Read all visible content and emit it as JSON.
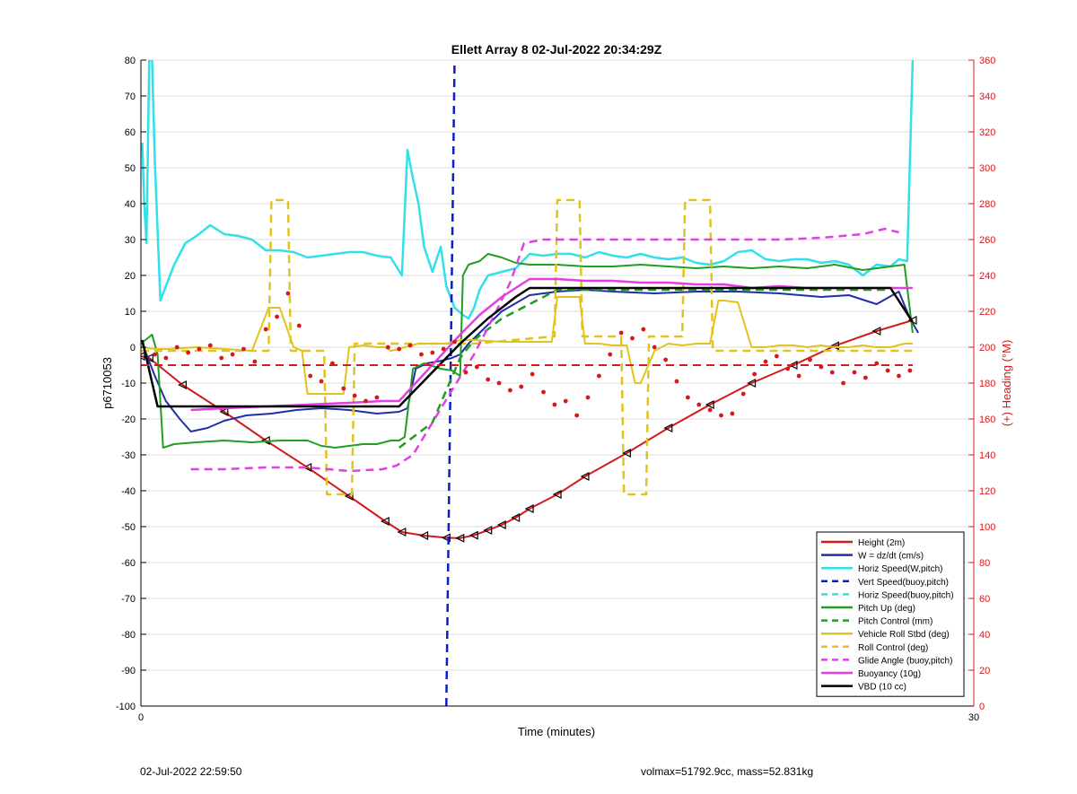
{
  "chart_data": {
    "type": "line",
    "title": "Ellett Array 8 02-Jul-2022 20:34:29Z",
    "xlabel": "Time (minutes)",
    "ylabel_left": "p6710053",
    "ylabel_right": "(+) Heading (°M)",
    "xlim": [
      0,
      30
    ],
    "ylim_left": [
      -100,
      80
    ],
    "ylim_right": [
      0,
      360
    ],
    "x_ticks": [
      "0",
      "30"
    ],
    "y_ticks_left": [
      "80",
      "70",
      "60",
      "50",
      "40",
      "30",
      "20",
      "10",
      "0",
      "-10",
      "-20",
      "-30",
      "-40",
      "-50",
      "-60",
      "-70",
      "-80",
      "-90",
      "-100"
    ],
    "y_ticks_right": [
      "360",
      "340",
      "320",
      "300",
      "280",
      "260",
      "240",
      "220",
      "200",
      "180",
      "160",
      "140",
      "120",
      "100",
      "80",
      "60",
      "40",
      "20",
      "0"
    ],
    "grid": true,
    "legend_position": "bottom-right",
    "colors": {
      "red": "#d7191c",
      "blue": "#1f2fa8",
      "dark_blue": "#0b1fc4",
      "cyan": "#32e0ea",
      "green": "#1f9e1f",
      "yellow": "#e2c31e",
      "magenta": "#e23fe2",
      "black": "#000000",
      "right_axis": "#d7191c",
      "grid": "#dcdcdc"
    },
    "series": [
      {
        "name": "Height (2m)",
        "color": "red",
        "dash": false,
        "width": 2,
        "markers": "triangle",
        "x": [
          0.0,
          0.3,
          1.5,
          3.0,
          4.5,
          6.0,
          7.5,
          8.8,
          9.4,
          10.2,
          11.0,
          11.5,
          12.0,
          12.5,
          13.0,
          13.5,
          14.0,
          15.0,
          16.0,
          17.5,
          19.0,
          20.5,
          22.0,
          23.5,
          25.0,
          26.5,
          27.8
        ],
        "y": [
          -2.5,
          -3,
          -10.5,
          -18,
          -26,
          -33.5,
          -41.5,
          -48.5,
          -51.5,
          -52.5,
          -53.1,
          -53.2,
          -52.4,
          -51,
          -49.5,
          -47.5,
          -45,
          -41,
          -36,
          -29.5,
          -22.5,
          -16,
          -10,
          -5,
          0.4,
          4.5,
          7.5
        ]
      },
      {
        "name": "W = dz/dt (cm/s)",
        "color": "blue",
        "dash": false,
        "width": 2,
        "x": [
          0.0,
          0.2,
          0.5,
          0.9,
          1.4,
          1.8,
          2.4,
          3.0,
          3.8,
          4.7,
          5.6,
          6.5,
          7.5,
          8.5,
          9.3,
          9.6,
          9.9,
          10.3,
          10.8,
          11.2,
          11.5,
          11.8,
          12.2,
          13.0,
          14.0,
          15.0,
          16.0,
          17.0,
          18.5,
          20.0,
          21.5,
          23.0,
          24.5,
          25.5,
          26.5,
          27.3,
          27.7,
          28.0
        ],
        "y": [
          2,
          -2,
          -8,
          -15,
          -20,
          -23.5,
          -22.5,
          -20.5,
          -19,
          -18.5,
          -17.5,
          -17,
          -17.5,
          -18.5,
          -18,
          -17,
          -6,
          -4.5,
          -3.8,
          -3,
          -2,
          1,
          4,
          10,
          14.5,
          15.5,
          16,
          15.5,
          15,
          15.5,
          15.5,
          15,
          14,
          14.5,
          12,
          15.5,
          8,
          4
        ]
      },
      {
        "name": "Horiz Speed(W,pitch)",
        "color": "cyan",
        "dash": false,
        "width": 2.5,
        "x": [
          0.05,
          0.12,
          0.2,
          0.3,
          0.4,
          0.5,
          0.7,
          0.9,
          1.2,
          1.6,
          2.0,
          2.5,
          3.0,
          3.5,
          4.0,
          4.5,
          5.0,
          5.5,
          6.0,
          6.5,
          7.0,
          7.5,
          8.0,
          8.5,
          9.0,
          9.4,
          9.6,
          9.8,
          10.0,
          10.2,
          10.5,
          10.8,
          11.0,
          11.3,
          11.6,
          11.8,
          12.0,
          12.2,
          12.5,
          13.0,
          13.5,
          14.0,
          14.5,
          15.0,
          15.5,
          16.0,
          16.5,
          17.0,
          17.5,
          18.0,
          18.5,
          19.0,
          19.5,
          20.0,
          20.5,
          21.0,
          21.5,
          22.0,
          22.5,
          23.0,
          23.5,
          24.0,
          24.5,
          25.0,
          25.5,
          26.0,
          26.5,
          27.0,
          27.3,
          27.6,
          27.8
        ],
        "y": [
          57,
          40,
          29,
          80,
          80,
          52,
          13,
          17,
          23,
          29,
          31,
          34,
          31.5,
          31,
          30,
          27,
          27,
          26.5,
          25,
          25.5,
          26,
          26.5,
          26.5,
          25.5,
          25,
          20,
          55,
          47,
          40,
          28,
          21,
          28,
          17,
          11,
          9,
          8,
          11,
          16,
          20,
          21,
          22,
          26,
          25.5,
          26,
          26,
          25,
          26.5,
          25.5,
          25,
          26,
          25,
          24.5,
          25,
          23.5,
          23,
          24,
          26.5,
          27,
          24.5,
          24,
          24.5,
          24.5,
          23.5,
          24,
          23,
          20,
          23,
          22.5,
          24.5,
          24,
          80
        ]
      },
      {
        "name": "Vert Speed(buoy,pitch)",
        "color": "dark_blue",
        "dash": true,
        "width": 2.5,
        "x": [
          11.0,
          11.3
        ],
        "y": [
          -100,
          80
        ]
      },
      {
        "name": "Horiz Speed(buoy,pitch)",
        "color": "cyan",
        "dash": true,
        "width": 2.5,
        "x": [],
        "y": []
      },
      {
        "name": "Pitch Up (deg)",
        "color": "green",
        "dash": false,
        "width": 2,
        "x": [
          0.0,
          0.4,
          0.6,
          0.8,
          1.2,
          2.0,
          3.0,
          4.0,
          5.0,
          6.0,
          6.5,
          7.0,
          7.5,
          8.0,
          8.5,
          9.0,
          9.3,
          9.5,
          9.8,
          10.2,
          10.8,
          11.2,
          11.5,
          11.6,
          11.8,
          12.2,
          12.5,
          13.0,
          13.5,
          14.0,
          14.5,
          15.0,
          16.0,
          17.0,
          18.0,
          19.0,
          20.0,
          21.0,
          22.0,
          23.0,
          24.0,
          25.0,
          26.0,
          27.0,
          27.5,
          27.8
        ],
        "y": [
          1,
          3.5,
          -2,
          -28,
          -27,
          -26.5,
          -26,
          -26.5,
          -26,
          -26,
          -27.5,
          -28,
          -27.5,
          -27,
          -27,
          -26,
          -26,
          -25,
          -6,
          -4.5,
          -6,
          -6.5,
          -8,
          20,
          23,
          24,
          26,
          25,
          23.5,
          23,
          23,
          23,
          22.5,
          22.5,
          23,
          22.5,
          22,
          22.5,
          22,
          22.5,
          22,
          23,
          21.5,
          22.5,
          23,
          4
        ]
      },
      {
        "name": "Pitch Control (mm)",
        "color": "green",
        "dash": true,
        "width": 2.5,
        "x": [
          9.3,
          10.5,
          11.0,
          11.5,
          12.0,
          12.5,
          13.0,
          14.0,
          15.0,
          16.0,
          20.0,
          24.0,
          27.0
        ],
        "y": [
          -28,
          -21,
          -12,
          -3,
          2,
          5,
          8,
          12,
          16,
          16,
          16,
          16,
          16
        ]
      },
      {
        "name": "Vehicle Roll Stbd (deg)",
        "color": "yellow",
        "dash": false,
        "width": 2,
        "x": [
          0.0,
          0.5,
          1.0,
          2.0,
          3.0,
          4.0,
          4.6,
          4.8,
          5.0,
          5.5,
          5.8,
          6.0,
          6.5,
          7.0,
          7.3,
          7.5,
          8.0,
          8.5,
          8.8,
          9.0,
          9.3,
          9.5,
          10.0,
          10.5,
          11.0,
          11.5,
          12.0,
          13.0,
          14.0,
          14.8,
          15.0,
          15.8,
          16.0,
          16.5,
          17.0,
          17.5,
          17.8,
          18.0,
          18.5,
          19.0,
          19.5,
          20.0,
          20.5,
          20.8,
          21.0,
          21.5,
          22.0,
          22.5,
          23.0,
          23.5,
          24.0,
          24.5,
          25.0,
          25.5,
          26.0,
          26.5,
          27.0,
          27.5,
          27.8
        ],
        "y": [
          0,
          -0.5,
          -0.5,
          0,
          -0.5,
          -1,
          11,
          11,
          11,
          0,
          -1,
          -13,
          -13,
          -13,
          -13,
          0,
          0.5,
          0,
          0,
          -1,
          -0.5,
          0,
          1,
          1,
          1,
          2,
          2,
          1.5,
          1.5,
          1.5,
          14,
          14,
          1,
          1,
          0.5,
          0.5,
          -10,
          -10,
          -1,
          1,
          0.5,
          1,
          1,
          13,
          13,
          12.5,
          0,
          0,
          0.5,
          0.5,
          0,
          0.5,
          0,
          0,
          0.5,
          0,
          0,
          1,
          1
        ]
      },
      {
        "name": "Roll Control (deg)",
        "color": "yellow",
        "dash": true,
        "width": 2.5,
        "x": [
          0.0,
          4.6,
          4.7,
          5.3,
          5.4,
          6.6,
          6.7,
          7.6,
          7.7,
          12.0,
          14.9,
          15.0,
          15.8,
          15.9,
          17.3,
          17.4,
          18.2,
          18.3,
          19.5,
          19.6,
          20.5,
          20.6,
          22.4,
          22.5,
          27.8
        ],
        "y": [
          -1,
          -1,
          41,
          41,
          -1,
          -1,
          -41,
          -41,
          1,
          1,
          3,
          41,
          41,
          3,
          3,
          -41,
          -41,
          3,
          3,
          41,
          41,
          -1,
          -1,
          -1,
          -1
        ]
      },
      {
        "name": "Glide Angle (buoy,pitch)",
        "color": "magenta",
        "dash": true,
        "width": 2.5,
        "x": [
          1.8,
          3.0,
          4.5,
          6.0,
          7.5,
          8.7,
          9.2,
          9.8,
          10.5,
          11.2,
          12.0,
          12.8,
          13.3,
          13.8,
          14.5,
          15.5,
          17.0,
          18.5,
          20.0,
          21.5,
          23.0,
          24.5,
          26.0,
          26.8,
          27.3
        ],
        "y": [
          -34,
          -34,
          -33.5,
          -33.5,
          -34.5,
          -34,
          -33,
          -30,
          -21,
          -12,
          -2,
          10,
          18,
          29,
          30,
          30,
          30,
          30,
          30,
          30,
          30,
          30.5,
          31.5,
          33,
          32
        ]
      },
      {
        "name": "Buoyancy (10g)",
        "color": "magenta",
        "dash": false,
        "width": 2.5,
        "x": [
          1.8,
          3.0,
          4.5,
          6.0,
          7.5,
          8.7,
          9.3,
          11.5,
          12.2,
          13.0,
          14.0,
          15.0,
          16.0,
          17.0,
          18.0,
          19.0,
          20.0,
          21.0,
          22.0,
          23.0,
          24.0,
          25.0,
          26.0,
          27.0,
          27.8
        ],
        "y": [
          -17.5,
          -17,
          -16.5,
          -16,
          -15.5,
          -15,
          -15,
          3.5,
          9,
          14,
          19,
          19,
          18.5,
          18.5,
          18,
          18,
          17.5,
          17.5,
          16.5,
          17,
          16.5,
          16.5,
          16.5,
          16.5,
          16.5
        ]
      },
      {
        "name": "VBD (10 cc)",
        "color": "black",
        "dash": false,
        "width": 2.5,
        "x": [
          0.05,
          0.6,
          1.0,
          2.0,
          3.0,
          4.0,
          5.0,
          6.0,
          7.0,
          8.0,
          9.3,
          11.5,
          12.5,
          13.5,
          14.0,
          15.0,
          16.0,
          17.0,
          18.0,
          19.0,
          20.0,
          21.0,
          22.0,
          23.0,
          24.0,
          25.0,
          26.0,
          27.0,
          27.8
        ],
        "y": [
          2,
          -16.5,
          -16.5,
          -16.5,
          -16.5,
          -16.5,
          -16.5,
          -16.5,
          -16.5,
          -16.5,
          -16.5,
          1,
          8,
          14,
          16.5,
          16.5,
          16.5,
          16.5,
          16.5,
          16.5,
          16.5,
          16.5,
          16.5,
          16.5,
          16.5,
          16.5,
          16.5,
          16.5,
          7
        ]
      },
      {
        "name": "Heading",
        "axis": "right",
        "color": "red",
        "dash": true,
        "width": 2,
        "x": [
          0.0,
          27.8
        ],
        "y": [
          190,
          190
        ]
      },
      {
        "name": "Heading points",
        "axis": "right",
        "color": "red",
        "dotted": true,
        "x": [
          0.5,
          0.9,
          1.3,
          1.7,
          2.1,
          2.5,
          2.9,
          3.3,
          3.7,
          4.1,
          4.5,
          4.9,
          5.3,
          5.7,
          6.1,
          6.5,
          6.9,
          7.3,
          7.7,
          8.1,
          8.5,
          8.9,
          9.3,
          9.7,
          10.1,
          10.5,
          10.9,
          11.3,
          11.7,
          12.1,
          12.5,
          12.9,
          13.3,
          13.7,
          14.1,
          14.5,
          14.9,
          15.3,
          15.7,
          16.1,
          16.5,
          16.9,
          17.3,
          17.7,
          18.1,
          18.5,
          18.9,
          19.3,
          19.7,
          20.1,
          20.5,
          20.9,
          21.3,
          21.7,
          22.1,
          22.5,
          22.9,
          23.3,
          23.7,
          24.1,
          24.5,
          24.9,
          25.3,
          25.7,
          26.1,
          26.5,
          26.9,
          27.3,
          27.7
        ],
        "y": [
          196,
          194,
          200,
          197,
          199,
          201,
          194,
          196,
          199,
          192,
          210,
          217,
          230,
          212,
          184,
          181,
          191,
          177,
          173,
          170,
          172,
          200,
          199,
          201,
          196,
          197,
          199,
          203,
          186,
          189,
          182,
          180,
          176,
          178,
          185,
          175,
          168,
          170,
          162,
          172,
          184,
          196,
          208,
          205,
          210,
          200,
          193,
          181,
          172,
          168,
          165,
          162,
          163,
          174,
          185,
          192,
          195,
          188,
          184,
          193,
          189,
          186,
          180,
          186,
          183,
          191,
          187,
          184,
          187
        ]
      }
    ],
    "legend_entries": [
      {
        "label": "Height (2m)",
        "color": "red",
        "dash": false
      },
      {
        "label": "W = dz/dt (cm/s)",
        "color": "blue",
        "dash": false
      },
      {
        "label": "Horiz Speed(W,pitch)",
        "color": "cyan",
        "dash": false
      },
      {
        "label": "Vert Speed(buoy,pitch)",
        "color": "dark_blue",
        "dash": true
      },
      {
        "label": "Horiz Speed(buoy,pitch)",
        "color": "cyan",
        "dash": true
      },
      {
        "label": "Pitch Up (deg)",
        "color": "green",
        "dash": false
      },
      {
        "label": "Pitch Control (mm)",
        "color": "green",
        "dash": true
      },
      {
        "label": "Vehicle Roll Stbd (deg)",
        "color": "yellow",
        "dash": false
      },
      {
        "label": "Roll Control (deg)",
        "color": "yellow",
        "dash": true
      },
      {
        "label": "Glide Angle (buoy,pitch)",
        "color": "magenta",
        "dash": true
      },
      {
        "label": "Buoyancy (10g)",
        "color": "magenta",
        "dash": false
      },
      {
        "label": "VBD (10 cc)",
        "color": "black",
        "dash": false
      }
    ]
  },
  "footer": {
    "left": "02-Jul-2022 22:59:50",
    "right": "volmax=51792.9cc, mass=52.831kg"
  }
}
